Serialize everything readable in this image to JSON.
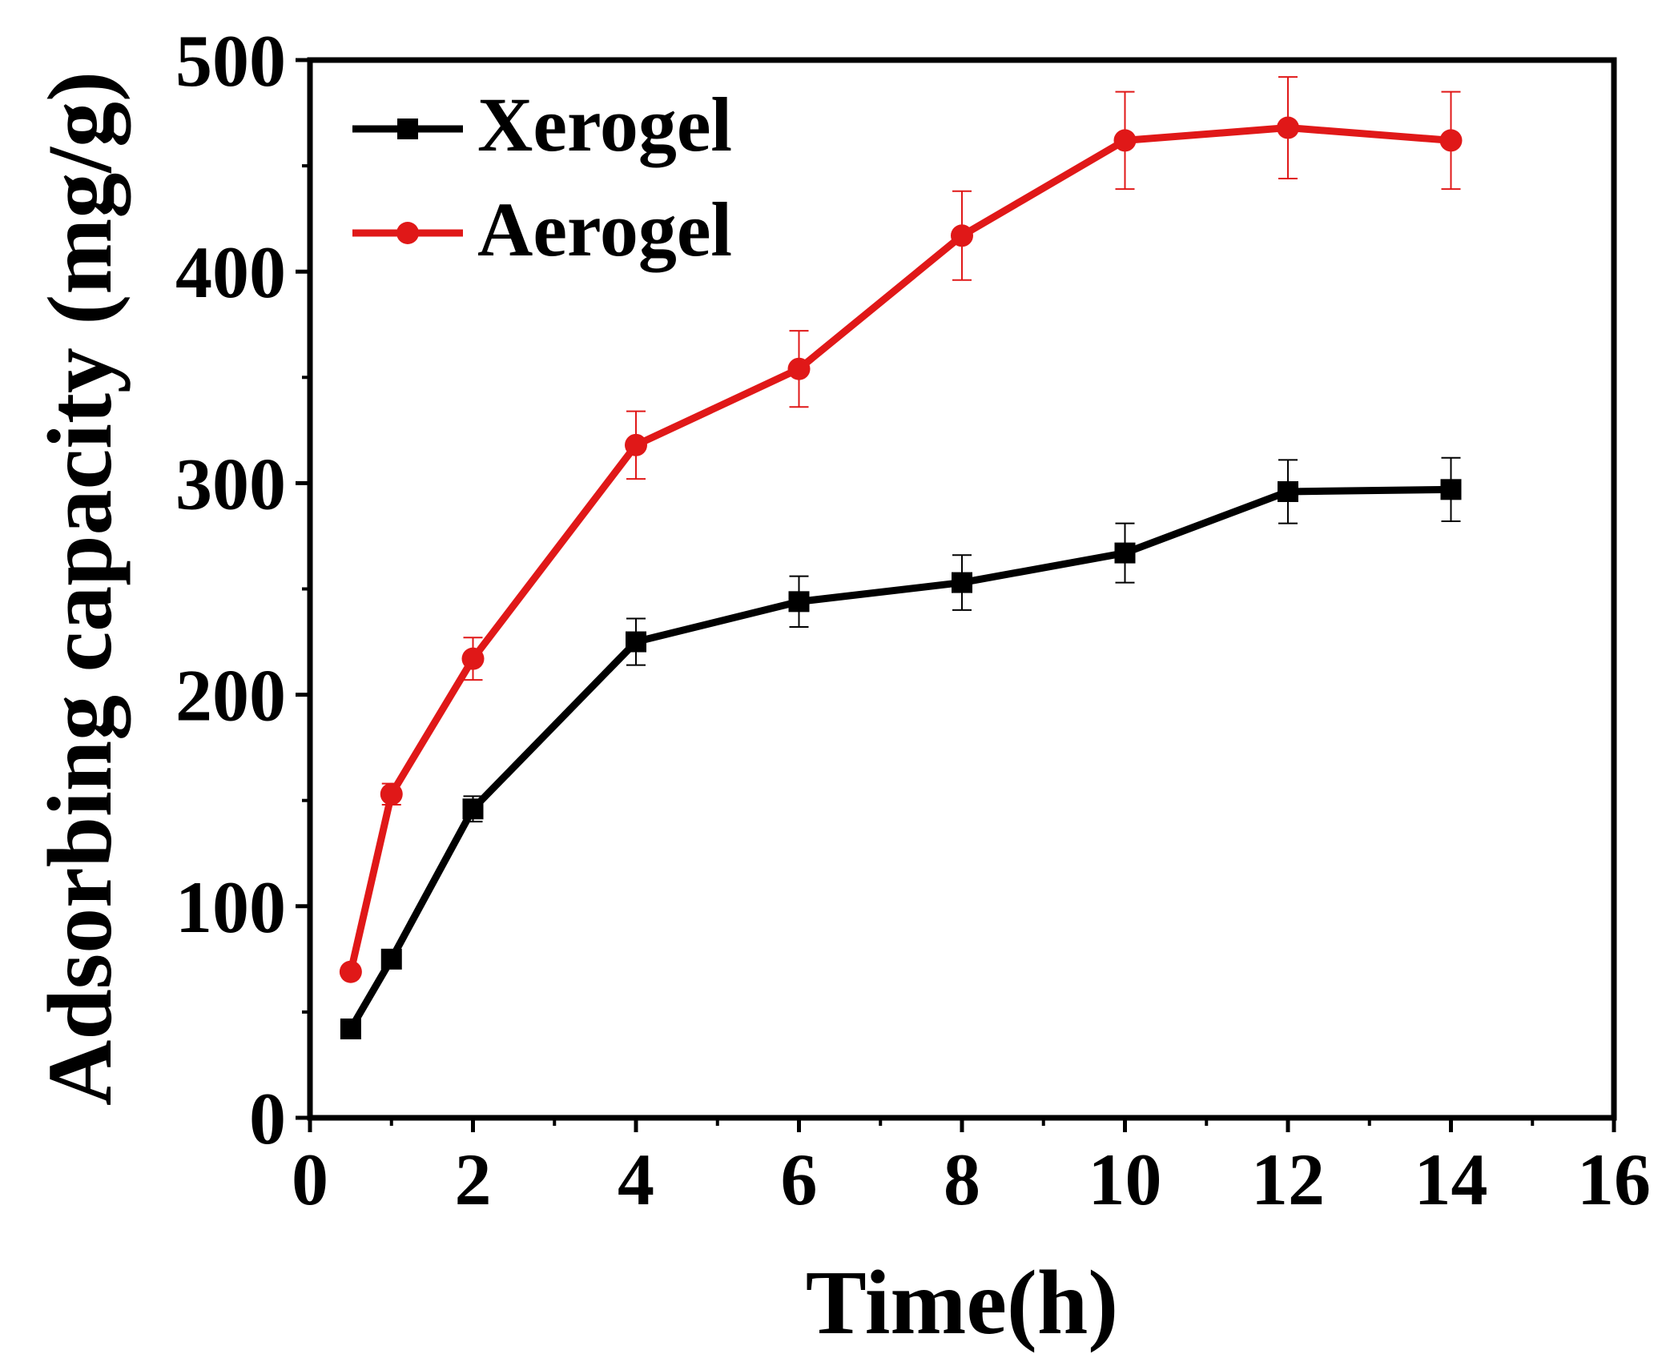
{
  "chart_data": {
    "type": "line",
    "title": "",
    "xlabel": "Time(h)",
    "ylabel": "Adsorbing capacity (mg/g)",
    "xlim": [
      0,
      16
    ],
    "ylim": [
      0,
      500
    ],
    "x_ticks": [
      0,
      2,
      4,
      6,
      8,
      10,
      12,
      14,
      16
    ],
    "y_ticks": [
      0,
      100,
      200,
      300,
      400,
      500
    ],
    "x_tick_labels": [
      "0",
      "2",
      "4",
      "6",
      "8",
      "10",
      "12",
      "14",
      "16"
    ],
    "y_tick_labels": [
      "0",
      "100",
      "200",
      "300",
      "400",
      "500"
    ],
    "legend_position": "top-left",
    "grid": false,
    "series": [
      {
        "name": "Xerogel",
        "color": "#000000",
        "marker": "square",
        "x": [
          0.5,
          1,
          2,
          4,
          6,
          8,
          10,
          12,
          14
        ],
        "y": [
          42,
          75,
          146,
          225,
          244,
          253,
          267,
          296,
          297
        ],
        "error": [
          0,
          3,
          6,
          11,
          12,
          13,
          14,
          15,
          15
        ]
      },
      {
        "name": "Aerogel",
        "color": "#e01818",
        "marker": "circle",
        "x": [
          0.5,
          1,
          2,
          4,
          6,
          8,
          10,
          12,
          14
        ],
        "y": [
          69,
          153,
          217,
          318,
          354,
          417,
          462,
          468,
          462
        ],
        "error": [
          0,
          5,
          10,
          16,
          18,
          21,
          23,
          24,
          23
        ]
      }
    ]
  }
}
